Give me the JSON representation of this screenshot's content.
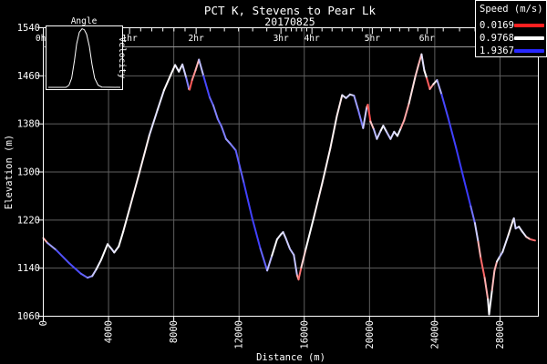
{
  "title": "PCT K, Stevens to Pear Lk",
  "subtitle": "20170825",
  "colors": {
    "background": "#000000",
    "foreground": "#ffffff",
    "grid": "#5f5f5f",
    "time_axis_line": "#9a9a9a",
    "speed_slow": "#ff2020",
    "speed_mid": "#ffffff",
    "speed_fast": "#2828ff"
  },
  "legend": {
    "title": "Speed (m/s)",
    "items": [
      {
        "label": "0.0169",
        "color": "#ff2020"
      },
      {
        "label": "0.9768",
        "color": "#ffffff"
      },
      {
        "label": "1.9367",
        "color": "#2828ff"
      }
    ]
  },
  "inset": {
    "title": "Angle",
    "right_label": "Velocity",
    "curve": [
      [
        0.03,
        0.965
      ],
      [
        0.26,
        0.965
      ],
      [
        0.3,
        0.93
      ],
      [
        0.335,
        0.82
      ],
      [
        0.37,
        0.55
      ],
      [
        0.4,
        0.28
      ],
      [
        0.435,
        0.1
      ],
      [
        0.47,
        0.045
      ],
      [
        0.5,
        0.06
      ],
      [
        0.53,
        0.13
      ],
      [
        0.565,
        0.32
      ],
      [
        0.6,
        0.6
      ],
      [
        0.635,
        0.82
      ],
      [
        0.68,
        0.93
      ],
      [
        0.73,
        0.96
      ],
      [
        0.97,
        0.965
      ]
    ]
  },
  "axes": {
    "x": {
      "label": "Distance (m)",
      "min": 0,
      "max": 30350,
      "ticks": [
        0,
        4000,
        8000,
        12000,
        16000,
        20000,
        24000,
        28000
      ]
    },
    "y": {
      "label": "Elevation (m)",
      "min": 1060,
      "max": 1540,
      "ticks": [
        1540,
        1460,
        1380,
        1300,
        1220,
        1140,
        1060
      ]
    },
    "time": {
      "labels": [
        "0hr",
        "1hr",
        "2hr",
        "3hr",
        "4hr",
        "5hr",
        "6hr"
      ],
      "positions_m": [
        0,
        5290,
        9370,
        14570,
        16470,
        20170,
        23520
      ],
      "minor_per_hour": 6,
      "extra_minor_m": [
        24520,
        25520,
        26470
      ]
    }
  },
  "chart_data": {
    "type": "line",
    "title": "PCT K, Stevens to Pear Lk",
    "subtitle": "20170825",
    "xlabel": "Distance (m)",
    "ylabel": "Elevation (m)",
    "xlim": [
      0,
      30350
    ],
    "ylim": [
      1060,
      1540
    ],
    "grid": true,
    "legend_position": "top-right",
    "series_description": "Elevation profile; line color encodes speed from red (0.0169 m/s) through white (0.9768 m/s) to blue (1.9367 m/s)",
    "speed_color_scale": {
      "min": 0.0169,
      "mid": 0.9768,
      "max": 1.9367
    },
    "points": [
      [
        0,
        1190,
        0.15
      ],
      [
        250,
        1182,
        1.1
      ],
      [
        800,
        1170,
        1.7
      ],
      [
        1600,
        1148,
        1.8
      ],
      [
        2300,
        1131,
        1.75
      ],
      [
        2710,
        1124,
        1.6
      ],
      [
        3000,
        1127,
        1.35
      ],
      [
        3250,
        1138,
        1.1
      ],
      [
        3550,
        1154,
        1.0
      ],
      [
        3940,
        1180,
        0.95
      ],
      [
        4180,
        1172,
        1.15
      ],
      [
        4350,
        1166,
        1.1
      ],
      [
        4620,
        1176,
        1.0
      ],
      [
        4900,
        1201,
        0.95
      ],
      [
        5300,
        1240,
        0.95
      ],
      [
        5900,
        1300,
        0.9
      ],
      [
        6500,
        1361,
        0.95
      ],
      [
        7000,
        1403,
        1.25
      ],
      [
        7400,
        1436,
        0.9
      ],
      [
        7800,
        1461,
        1.0
      ],
      [
        8080,
        1478,
        0.9
      ],
      [
        8310,
        1467,
        1.2
      ],
      [
        8530,
        1479,
        0.9
      ],
      [
        8760,
        1457,
        1.5
      ],
      [
        8930,
        1438,
        1.55
      ],
      [
        8970,
        1437,
        0.12
      ],
      [
        9120,
        1453,
        0.4
      ],
      [
        9330,
        1469,
        0.6
      ],
      [
        9540,
        1487,
        0.75
      ],
      [
        9820,
        1460,
        1.8
      ],
      [
        10200,
        1424,
        1.8
      ],
      [
        10420,
        1411,
        1.55
      ],
      [
        10700,
        1388,
        1.5
      ],
      [
        10920,
        1376,
        1.7
      ],
      [
        11200,
        1355,
        1.4
      ],
      [
        11500,
        1346,
        1.5
      ],
      [
        11800,
        1336,
        1.6
      ],
      [
        12300,
        1281,
        1.8
      ],
      [
        12800,
        1224,
        1.85
      ],
      [
        13300,
        1173,
        1.8
      ],
      [
        13730,
        1136,
        1.55
      ],
      [
        14020,
        1161,
        1.0
      ],
      [
        14330,
        1188,
        0.95
      ],
      [
        14560,
        1196,
        1.15
      ],
      [
        14700,
        1200,
        1.0
      ],
      [
        14860,
        1190,
        1.3
      ],
      [
        15120,
        1172,
        1.1
      ],
      [
        15360,
        1162,
        1.45
      ],
      [
        15560,
        1128,
        1.05
      ],
      [
        15650,
        1121,
        0.15
      ],
      [
        15810,
        1141,
        0.6
      ],
      [
        16100,
        1172,
        1.0
      ],
      [
        16600,
        1226,
        0.95
      ],
      [
        17100,
        1281,
        0.9
      ],
      [
        17600,
        1340,
        0.95
      ],
      [
        18000,
        1393,
        0.9
      ],
      [
        18320,
        1428,
        0.9
      ],
      [
        18560,
        1423,
        1.3
      ],
      [
        18800,
        1429,
        1.1
      ],
      [
        19050,
        1427,
        1.2
      ],
      [
        19310,
        1403,
        1.6
      ],
      [
        19610,
        1373,
        1.5
      ],
      [
        19830,
        1408,
        0.9
      ],
      [
        19900,
        1412,
        0.2
      ],
      [
        20060,
        1384,
        0.25
      ],
      [
        20260,
        1371,
        1.2
      ],
      [
        20450,
        1355,
        1.4
      ],
      [
        20690,
        1369,
        1.0
      ],
      [
        20840,
        1377,
        1.0
      ],
      [
        21060,
        1366,
        1.2
      ],
      [
        21290,
        1355,
        1.3
      ],
      [
        21510,
        1367,
        1.0
      ],
      [
        21710,
        1360,
        1.2
      ],
      [
        21920,
        1373,
        0.9
      ],
      [
        22120,
        1386,
        0.3
      ],
      [
        22420,
        1414,
        0.9
      ],
      [
        22810,
        1459,
        0.8
      ],
      [
        23010,
        1479,
        0.7
      ],
      [
        23190,
        1496,
        0.6
      ],
      [
        23360,
        1469,
        1.6
      ],
      [
        23510,
        1456,
        0.3
      ],
      [
        23700,
        1438,
        0.25
      ],
      [
        23910,
        1446,
        0.9
      ],
      [
        24140,
        1453,
        0.9
      ],
      [
        24420,
        1429,
        1.75
      ],
      [
        24810,
        1391,
        1.85
      ],
      [
        25310,
        1340,
        1.8
      ],
      [
        25810,
        1285,
        1.9
      ],
      [
        26200,
        1243,
        1.8
      ],
      [
        26460,
        1215,
        1.4
      ],
      [
        26660,
        1184,
        1.0
      ],
      [
        26820,
        1157,
        0.3
      ],
      [
        27060,
        1124,
        0.35
      ],
      [
        27260,
        1088,
        0.9
      ],
      [
        27330,
        1063,
        1.1
      ],
      [
        27510,
        1103,
        0.9
      ],
      [
        27660,
        1136,
        0.5
      ],
      [
        27810,
        1151,
        0.8
      ],
      [
        27960,
        1158,
        1.3
      ],
      [
        28160,
        1167,
        1.2
      ],
      [
        28510,
        1195,
        0.95
      ],
      [
        28790,
        1219,
        0.9
      ],
      [
        28850,
        1223,
        1.0
      ],
      [
        28960,
        1206,
        1.3
      ],
      [
        29160,
        1209,
        1.1
      ],
      [
        29360,
        1201,
        1.05
      ],
      [
        29610,
        1192,
        1.1
      ],
      [
        29860,
        1188,
        0.4
      ],
      [
        30150,
        1186,
        0.3
      ]
    ]
  }
}
